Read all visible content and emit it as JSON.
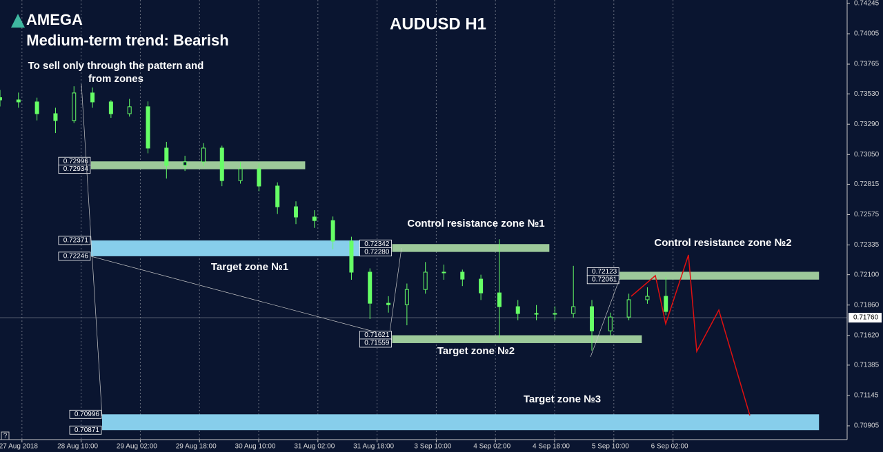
{
  "chart_data": {
    "type": "candlestick",
    "brand": "AMEGA",
    "title": "AUDUSD H1",
    "subtitle": "Medium-term trend: Bearish",
    "annotation": [
      "To sell only through the pattern and",
      "from zones"
    ],
    "help": "?",
    "up_color": "#66ff66",
    "down_color": "#66ff66",
    "grid": true,
    "xlim": [
      0,
      229
    ],
    "xticks": [
      {
        "value": 5,
        "label": "27 Aug 2018"
      },
      {
        "value": 21,
        "label": "28 Aug 10:00"
      },
      {
        "value": 37,
        "label": "29 Aug 02:00"
      },
      {
        "value": 53,
        "label": "29 Aug 18:00"
      },
      {
        "value": 69,
        "label": "30 Aug 10:00"
      },
      {
        "value": 85,
        "label": "31 Aug 02:00"
      },
      {
        "value": 101,
        "label": "31 Aug 18:00"
      },
      {
        "value": 117,
        "label": "3 Sep 10:00"
      },
      {
        "value": 133,
        "label": "4 Sep 02:00"
      },
      {
        "value": 149,
        "label": "4 Sep 18:00"
      },
      {
        "value": 165,
        "label": "5 Sep 10:00"
      },
      {
        "value": 181,
        "label": "6 Sep 02:00"
      }
    ],
    "ylim": [
      0.70796,
      0.74272
    ],
    "yticks": [
      0.74245,
      0.74005,
      0.73765,
      {
        "value": 0.7353,
        "label": "0.73530"
      },
      {
        "value": 0.7329,
        "label": "0.73290"
      },
      {
        "value": 0.7305,
        "label": "0.73050"
      },
      0.72815,
      0.72575,
      0.72335,
      {
        "value": 0.721,
        "label": "0.72100"
      },
      {
        "value": 0.7186,
        "label": "0.71860"
      },
      {
        "value": 0.7162,
        "label": "0.71620"
      },
      0.71385,
      0.71145,
      0.70905
    ],
    "current_price": {
      "value": 0.7176,
      "label": "0.71760"
    },
    "x": [
      0,
      5,
      10,
      15,
      20,
      25,
      30,
      35,
      40,
      45,
      50,
      55,
      60,
      65,
      70,
      75,
      80,
      85,
      90,
      95,
      100,
      105,
      110,
      115,
      120,
      125,
      130,
      135,
      140,
      145,
      150,
      155,
      160,
      165,
      170,
      175,
      180
    ],
    "open": [
      0.735,
      0.73482,
      0.73466,
      0.73373,
      0.73319,
      0.73537,
      0.73466,
      0.73373,
      0.73428,
      0.73101,
      0.72964,
      0.72992,
      0.73101,
      0.72844,
      0.72937,
      0.72801,
      0.72637,
      0.72556,
      0.72528,
      0.72365,
      0.7212,
      0.71874,
      0.71863,
      0.71983,
      0.7212,
      0.7212,
      0.72065,
      0.71956,
      0.71847,
      0.71793,
      0.71793,
      0.71793,
      0.71847,
      0.71656,
      0.71765,
      0.71902,
      0.71929
    ],
    "high": [
      0.7356,
      0.7354,
      0.735,
      0.7342,
      0.7359,
      0.7358,
      0.7348,
      0.7349,
      0.7347,
      0.7315,
      0.7304,
      0.7314,
      0.7312,
      0.7299,
      0.7298,
      0.7283,
      0.7268,
      0.7261,
      0.7256,
      0.724,
      0.7215,
      0.7193,
      0.7203,
      0.722,
      0.7218,
      0.7214,
      0.721,
      0.7238,
      0.719,
      0.7186,
      0.7185,
      0.7217,
      0.719,
      0.718,
      0.7195,
      0.72,
      0.7208
    ],
    "low": [
      0.7343,
      0.7342,
      0.7332,
      0.7322,
      0.733,
      0.7342,
      0.7334,
      0.7335,
      0.7306,
      0.7286,
      0.7292,
      0.7296,
      0.728,
      0.7282,
      0.7276,
      0.7258,
      0.725,
      0.7247,
      0.723,
      0.7206,
      0.7175,
      0.718,
      0.717,
      0.7195,
      0.7206,
      0.7201,
      0.719,
      0.716,
      0.7174,
      0.7174,
      0.7174,
      0.7176,
      0.715,
      0.7162,
      0.7174,
      0.7187,
      0.7178
    ],
    "close": [
      0.73482,
      0.73466,
      0.73373,
      0.73319,
      0.73537,
      0.73466,
      0.73373,
      0.73428,
      0.73101,
      0.72964,
      0.72992,
      0.73101,
      0.72844,
      0.72937,
      0.72801,
      0.72637,
      0.72556,
      0.72528,
      0.72365,
      0.7212,
      0.71874,
      0.71863,
      0.71983,
      0.7212,
      0.7212,
      0.72065,
      0.71956,
      0.71847,
      0.71793,
      0.71793,
      0.71793,
      0.71847,
      0.71656,
      0.71765,
      0.71902,
      0.71929,
      0.71809
    ],
    "zones": [
      {
        "color": "#9dc99a",
        "x": [
          24.6,
          82.5
        ],
        "upper": 0.72996,
        "lower": 0.72934
      },
      {
        "name": "Target zone №1",
        "color": "#87ceeb",
        "x": [
          24.6,
          98.5
        ],
        "upper": 0.72371,
        "lower": 0.72246
      },
      {
        "name": "Control resistance zone №1",
        "color": "#9dc99a",
        "x": [
          106,
          148.5
        ],
        "upper": 0.72342,
        "lower": {
          "value": 0.7228,
          "label": "0.72280"
        }
      },
      {
        "name": "Target zone №2",
        "color": "#9dc99a",
        "x": [
          106,
          173.5
        ],
        "upper": 0.71621,
        "lower": 0.71559
      },
      {
        "name": "Control resistance zone №2",
        "color": "#9dc99a",
        "x": [
          167.5,
          221.4
        ],
        "upper": 0.72123,
        "lower": 0.72061
      },
      {
        "name": "Target zone №3",
        "color": "#87ceeb",
        "x": [
          27.6,
          221.4
        ],
        "upper": 0.70996,
        "lower": 0.70871
      }
    ]
  }
}
